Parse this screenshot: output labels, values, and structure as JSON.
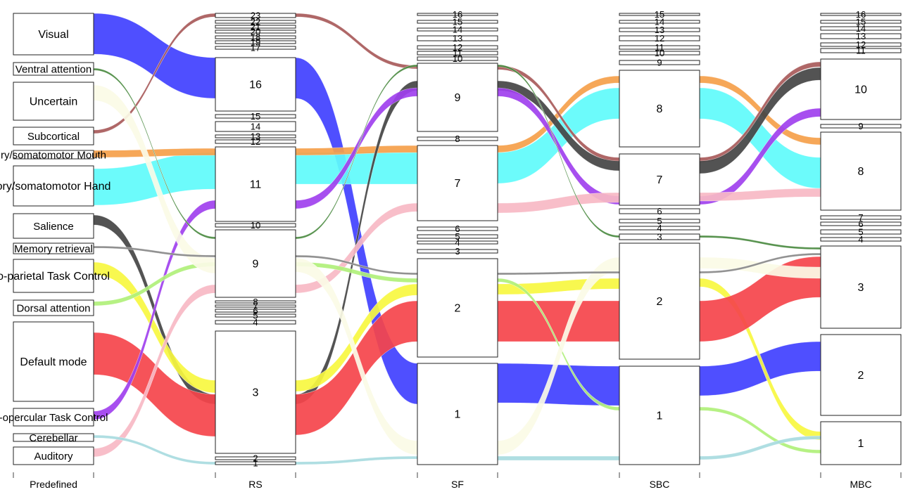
{
  "axes": [
    {
      "id": "Predefined",
      "label": "Predefined",
      "nodes": [
        {
          "id": "visual",
          "label": "Visual"
        },
        {
          "id": "ventral",
          "label": "Ventral attention"
        },
        {
          "id": "uncertain",
          "label": "Uncertain"
        },
        {
          "id": "subcortical",
          "label": "Subcortical"
        },
        {
          "id": "mouth",
          "label": "ry/somatomotor Mouth"
        },
        {
          "id": "hand",
          "label": "ory/somatomotor Hand"
        },
        {
          "id": "salience",
          "label": "Salience"
        },
        {
          "id": "memory",
          "label": "Memory retrieval"
        },
        {
          "id": "frontopar",
          "label": "o-parietal Task Control"
        },
        {
          "id": "dorsal",
          "label": "Dorsal attention"
        },
        {
          "id": "default",
          "label": "Default mode"
        },
        {
          "id": "cingulo",
          "label": "-opercular Task Control"
        },
        {
          "id": "cerebellar",
          "label": "Cerebellar"
        },
        {
          "id": "auditory",
          "label": "Auditory"
        }
      ]
    },
    {
      "id": "RS",
      "label": "RS",
      "nodes": [
        {
          "id": "rs23",
          "label": "23"
        },
        {
          "id": "rs22",
          "label": "22"
        },
        {
          "id": "rs21",
          "label": "21"
        },
        {
          "id": "rs20",
          "label": "20"
        },
        {
          "id": "rs18",
          "label": "18"
        },
        {
          "id": "rs19",
          "label": "19"
        },
        {
          "id": "rs17",
          "label": "17"
        },
        {
          "id": "rs16",
          "label": "16"
        },
        {
          "id": "rs15",
          "label": "15"
        },
        {
          "id": "rs14",
          "label": "14"
        },
        {
          "id": "rs13",
          "label": "13"
        },
        {
          "id": "rs12",
          "label": "12"
        },
        {
          "id": "rs11",
          "label": "11"
        },
        {
          "id": "rs10",
          "label": "10"
        },
        {
          "id": "rs9",
          "label": "9"
        },
        {
          "id": "rs8",
          "label": "8"
        },
        {
          "id": "rs7",
          "label": "7"
        },
        {
          "id": "rs6",
          "label": "6"
        },
        {
          "id": "rs5",
          "label": "5"
        },
        {
          "id": "rs4",
          "label": "4"
        },
        {
          "id": "rs3",
          "label": "3"
        },
        {
          "id": "rs2",
          "label": "2"
        },
        {
          "id": "rs1",
          "label": "1"
        }
      ]
    },
    {
      "id": "SF",
      "label": "SF",
      "nodes": [
        {
          "id": "sf16",
          "label": "16"
        },
        {
          "id": "sf15",
          "label": "15"
        },
        {
          "id": "sf14",
          "label": "14"
        },
        {
          "id": "sf13",
          "label": "13"
        },
        {
          "id": "sf12",
          "label": "12"
        },
        {
          "id": "sf11",
          "label": "11"
        },
        {
          "id": "sf10",
          "label": "10"
        },
        {
          "id": "sf9",
          "label": "9"
        },
        {
          "id": "sf8",
          "label": "8"
        },
        {
          "id": "sf7",
          "label": "7"
        },
        {
          "id": "sf6",
          "label": "6"
        },
        {
          "id": "sf5",
          "label": "5"
        },
        {
          "id": "sf4",
          "label": "4"
        },
        {
          "id": "sf3",
          "label": "3"
        },
        {
          "id": "sf2",
          "label": "2"
        },
        {
          "id": "sf1",
          "label": "1"
        }
      ]
    },
    {
      "id": "SBC",
      "label": "SBC",
      "nodes": [
        {
          "id": "sbc15",
          "label": "15"
        },
        {
          "id": "sbc14",
          "label": "14"
        },
        {
          "id": "sbc13",
          "label": "13"
        },
        {
          "id": "sbc12",
          "label": "12"
        },
        {
          "id": "sbc11",
          "label": "11"
        },
        {
          "id": "sbc10",
          "label": "10"
        },
        {
          "id": "sbc9",
          "label": "9"
        },
        {
          "id": "sbc8",
          "label": "8"
        },
        {
          "id": "sbc7",
          "label": "7"
        },
        {
          "id": "sbc6",
          "label": "6"
        },
        {
          "id": "sbc5",
          "label": "5"
        },
        {
          "id": "sbc4",
          "label": "4"
        },
        {
          "id": "sbc3",
          "label": "3"
        },
        {
          "id": "sbc2",
          "label": "2"
        },
        {
          "id": "sbc1",
          "label": "1"
        }
      ]
    },
    {
      "id": "MBC",
      "label": "MBC",
      "nodes": [
        {
          "id": "mbc16",
          "label": "16"
        },
        {
          "id": "mbc15",
          "label": "15"
        },
        {
          "id": "mbc14",
          "label": "14"
        },
        {
          "id": "mbc13",
          "label": "13"
        },
        {
          "id": "mbc12",
          "label": "12"
        },
        {
          "id": "mbc11",
          "label": "11"
        },
        {
          "id": "mbc10",
          "label": "10"
        },
        {
          "id": "mbc9",
          "label": "9"
        },
        {
          "id": "mbc8",
          "label": "8"
        },
        {
          "id": "mbc7",
          "label": "7"
        },
        {
          "id": "mbc6",
          "label": "6"
        },
        {
          "id": "mbc5",
          "label": "5"
        },
        {
          "id": "mbc4",
          "label": "4"
        },
        {
          "id": "mbc3",
          "label": "3"
        },
        {
          "id": "mbc2",
          "label": "2"
        },
        {
          "id": "mbc1",
          "label": "1"
        }
      ]
    }
  ],
  "flows": [
    {
      "name": "visual",
      "color": "#4040ff",
      "path": [
        "visual",
        "rs16",
        "sf1",
        "sbc1",
        "mbc2"
      ]
    },
    {
      "name": "hand",
      "color": "#5ffbfb",
      "path": [
        "hand",
        "rs11",
        "sf7",
        "sbc8",
        "mbc8"
      ]
    },
    {
      "name": "mouth",
      "color": "#f5a04a",
      "path": [
        "mouth",
        "rs11",
        "sf7",
        "sbc8",
        "mbc8"
      ]
    },
    {
      "name": "subcortical",
      "color": "#a85a5a",
      "path": [
        "subcortical",
        "rs23",
        "sf9",
        "sbc7",
        "mbc10"
      ]
    },
    {
      "name": "salience",
      "color": "#444444",
      "path": [
        "salience",
        "rs3",
        "sf9",
        "sbc7",
        "mbc10"
      ]
    },
    {
      "name": "frontopar",
      "color": "#f7f740",
      "path": [
        "frontopar",
        "rs3",
        "sf2",
        "sbc2",
        "mbc1"
      ]
    },
    {
      "name": "default",
      "color": "#f5444b",
      "path": [
        "default",
        "rs3",
        "sf2",
        "sbc2",
        "mbc3"
      ]
    },
    {
      "name": "cingulo",
      "color": "#a040ee",
      "path": [
        "cingulo",
        "rs11",
        "sf9",
        "sbc7",
        "mbc10"
      ]
    },
    {
      "name": "auditory",
      "color": "#f7b8c4",
      "path": [
        "auditory",
        "rs9",
        "sf7",
        "sbc7",
        "mbc8"
      ]
    },
    {
      "name": "dorsal",
      "color": "#b0f07a",
      "path": [
        "dorsal",
        "rs9",
        "sf2",
        "sbc1",
        "mbc1"
      ]
    },
    {
      "name": "ventral",
      "color": "#4a8a40",
      "path": [
        "ventral",
        "rs9",
        "sf9",
        "sbc3",
        "mbc3"
      ]
    },
    {
      "name": "uncertain",
      "color": "#fbfbe6",
      "path": [
        "uncertain",
        "rs9",
        "sf1",
        "sbc2",
        "mbc3"
      ]
    },
    {
      "name": "cerebellar",
      "color": "#a8dbe0",
      "path": [
        "cerebellar",
        "rs1",
        "sf1",
        "sbc1",
        "mbc1"
      ]
    },
    {
      "name": "memory",
      "color": "#888888",
      "path": [
        "memory",
        "rs9",
        "sf2",
        "sbc2",
        "mbc3"
      ]
    }
  ]
}
